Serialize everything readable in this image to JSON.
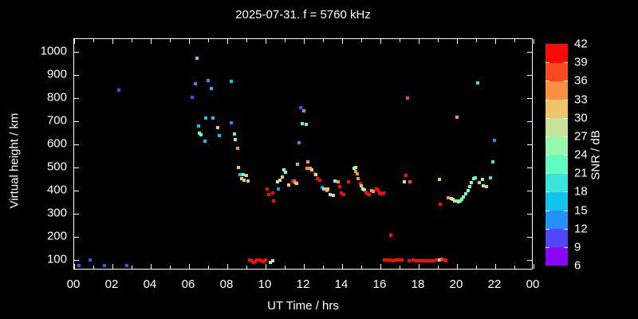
{
  "title": "2025-07-31. f = 5760 kHz",
  "axes": {
    "x": {
      "label": "UT Time / hrs",
      "tick_hours": [
        0,
        2,
        4,
        6,
        8,
        10,
        12,
        14,
        16,
        18,
        20,
        22,
        24
      ],
      "tick_labels": [
        "00",
        "02",
        "04",
        "06",
        "08",
        "10",
        "12",
        "14",
        "16",
        "18",
        "20",
        "22",
        "00"
      ],
      "minor_every_hours": 1,
      "range_hours": [
        0,
        24
      ]
    },
    "y": {
      "label": "Virtual height / km",
      "tick_values": [
        100,
        200,
        300,
        400,
        500,
        600,
        700,
        800,
        900,
        1000
      ],
      "tick_labels": [
        "100",
        "200",
        "300",
        "400",
        "500",
        "600",
        "700",
        "800",
        "900",
        "1000"
      ],
      "range_km": [
        55,
        1055
      ]
    }
  },
  "colorbar": {
    "label": "SNR / dB",
    "min": 6,
    "max": 42,
    "step": 3,
    "tick_labels": [
      "6",
      "9",
      "12",
      "15",
      "18",
      "21",
      "24",
      "27",
      "30",
      "33",
      "36",
      "39",
      "42"
    ],
    "colors": [
      "#8807fb",
      "#5345fb",
      "#2590f5",
      "#12c3ec",
      "#3ce3db",
      "#63fcc3",
      "#96f9ab",
      "#c5e39a",
      "#edc56d",
      "#fb9043",
      "#fb4a22",
      "#fb0a07"
    ]
  },
  "chart_data": {
    "type": "scatter",
    "xlabel": "UT Time / hrs",
    "ylabel": "Virtual height / km",
    "value_label": "SNR / dB",
    "series": [
      {
        "name": "ionospheric-echoes",
        "point_format": [
          "hour_ut",
          "virtual_height_km",
          "snr_db"
        ],
        "points": [
          [
            0.29,
            72,
            10
          ],
          [
            0.87,
            95,
            10
          ],
          [
            1.61,
            72,
            10
          ],
          [
            2.81,
            72,
            10
          ],
          [
            2.39,
            830,
            10
          ],
          [
            6.21,
            800,
            10
          ],
          [
            6.39,
            860,
            13
          ],
          [
            6.47,
            968,
            19
          ],
          [
            7.05,
            872,
            13
          ],
          [
            7.22,
            838,
            16
          ],
          [
            8.26,
            870,
            16
          ],
          [
            6.53,
            677,
            16
          ],
          [
            6.6,
            646,
            22
          ],
          [
            6.68,
            637,
            22
          ],
          [
            6.86,
            611,
            16
          ],
          [
            6.9,
            709,
            16
          ],
          [
            7.29,
            709,
            16
          ],
          [
            7.53,
            669,
            31
          ],
          [
            7.63,
            634,
            16
          ],
          [
            8.26,
            690,
            13
          ],
          [
            8.4,
            640,
            22
          ],
          [
            8.46,
            617,
            28
          ],
          [
            8.57,
            580,
            34
          ],
          [
            8.63,
            497,
            31
          ],
          [
            8.7,
            464,
            16
          ],
          [
            8.8,
            448,
            31
          ],
          [
            8.88,
            464,
            22
          ],
          [
            8.91,
            442,
            31
          ],
          [
            9.04,
            463,
            31
          ],
          [
            9.13,
            437,
            31
          ],
          [
            9.2,
            97,
            40
          ],
          [
            9.3,
            92,
            40
          ],
          [
            9.4,
            87,
            40
          ],
          [
            9.5,
            90,
            40
          ],
          [
            9.6,
            96,
            40
          ],
          [
            9.72,
            95,
            40
          ],
          [
            9.85,
            92,
            40
          ],
          [
            9.95,
            90,
            40
          ],
          [
            10.05,
            96,
            40
          ],
          [
            10.3,
            87,
            28
          ],
          [
            10.42,
            92,
            25
          ],
          [
            10.13,
            404,
            40
          ],
          [
            10.22,
            380,
            40
          ],
          [
            10.4,
            387,
            40
          ],
          [
            10.45,
            353,
            40
          ],
          [
            10.67,
            433,
            28
          ],
          [
            10.7,
            404,
            13
          ],
          [
            10.79,
            441,
            28
          ],
          [
            10.92,
            454,
            31
          ],
          [
            11.0,
            487,
            25
          ],
          [
            11.07,
            476,
            25
          ],
          [
            11.25,
            421,
            31
          ],
          [
            11.45,
            439,
            40
          ],
          [
            11.53,
            439,
            37
          ],
          [
            11.58,
            431,
            34
          ],
          [
            11.68,
            427,
            31
          ],
          [
            11.71,
            510,
            19
          ],
          [
            11.78,
            603,
            13
          ],
          [
            11.89,
            755,
            10
          ],
          [
            11.96,
            687,
            22
          ],
          [
            12.05,
            742,
            16
          ],
          [
            12.15,
            683,
            22
          ],
          [
            12.22,
            494,
            34
          ],
          [
            12.25,
            522,
            34
          ],
          [
            12.38,
            494,
            34
          ],
          [
            12.47,
            486,
            31
          ],
          [
            12.61,
            469,
            40
          ],
          [
            12.67,
            465,
            25
          ],
          [
            12.76,
            450,
            40
          ],
          [
            12.86,
            442,
            40
          ],
          [
            13.01,
            410,
            13
          ],
          [
            13.1,
            404,
            22
          ],
          [
            13.18,
            404,
            31
          ],
          [
            13.24,
            396,
            34
          ],
          [
            13.28,
            402,
            31
          ],
          [
            13.42,
            379,
            28
          ],
          [
            13.6,
            376,
            28
          ],
          [
            13.67,
            438,
            25
          ],
          [
            13.85,
            433,
            34
          ],
          [
            13.93,
            415,
            40
          ],
          [
            14.01,
            385,
            40
          ],
          [
            14.13,
            378,
            40
          ],
          [
            14.39,
            434,
            40
          ],
          [
            14.65,
            494,
            25
          ],
          [
            14.74,
            479,
            34
          ],
          [
            14.75,
            498,
            25
          ],
          [
            14.82,
            468,
            34
          ],
          [
            14.89,
            447,
            34
          ],
          [
            14.99,
            428,
            40
          ],
          [
            15.05,
            418,
            31
          ],
          [
            15.13,
            405,
            25
          ],
          [
            15.21,
            401,
            25
          ],
          [
            15.3,
            390,
            40
          ],
          [
            15.38,
            384,
            40
          ],
          [
            15.47,
            378,
            40
          ],
          [
            15.58,
            397,
            34
          ],
          [
            15.67,
            393,
            34
          ],
          [
            15.82,
            403,
            40
          ],
          [
            15.92,
            401,
            40
          ],
          [
            16.01,
            387,
            40
          ],
          [
            16.11,
            383,
            40
          ],
          [
            16.21,
            385,
            40
          ],
          [
            16.58,
            203,
            40
          ],
          [
            16.25,
            98,
            40
          ],
          [
            16.4,
            96,
            40
          ],
          [
            16.55,
            95,
            40
          ],
          [
            16.7,
            94,
            40
          ],
          [
            16.85,
            95,
            40
          ],
          [
            17.0,
            96,
            40
          ],
          [
            17.15,
            95,
            40
          ],
          [
            17.55,
            93,
            40
          ],
          [
            17.76,
            95,
            40
          ],
          [
            17.9,
            94,
            40
          ],
          [
            18.05,
            93,
            40
          ],
          [
            18.2,
            93,
            40
          ],
          [
            18.35,
            94,
            40
          ],
          [
            18.5,
            93,
            40
          ],
          [
            18.65,
            93,
            40
          ],
          [
            18.8,
            94,
            40
          ],
          [
            18.95,
            95,
            40
          ],
          [
            19.13,
            97,
            28
          ],
          [
            19.27,
            101,
            37
          ],
          [
            19.37,
            98,
            40
          ],
          [
            19.47,
            93,
            40
          ],
          [
            17.28,
            433,
            25
          ],
          [
            17.39,
            462,
            40
          ],
          [
            17.6,
            434,
            37
          ],
          [
            17.47,
            795,
            37
          ],
          [
            19.14,
            446,
            31
          ],
          [
            19.17,
            337,
            40
          ],
          [
            19.6,
            367,
            34
          ],
          [
            19.75,
            362,
            28
          ],
          [
            19.82,
            358,
            28
          ],
          [
            19.93,
            353,
            25
          ],
          [
            20.03,
            351,
            25
          ],
          [
            20.13,
            350,
            25
          ],
          [
            20.21,
            351,
            25
          ],
          [
            20.29,
            357,
            22
          ],
          [
            20.39,
            368,
            25
          ],
          [
            20.51,
            382,
            22
          ],
          [
            20.63,
            397,
            25
          ],
          [
            20.71,
            415,
            22
          ],
          [
            20.79,
            431,
            25
          ],
          [
            20.92,
            448,
            22
          ],
          [
            21.01,
            451,
            22
          ],
          [
            21.2,
            431,
            31
          ],
          [
            21.37,
            445,
            25
          ],
          [
            21.43,
            418,
            25
          ],
          [
            21.57,
            413,
            31
          ],
          [
            21.79,
            451,
            19
          ],
          [
            21.9,
            520,
            19
          ],
          [
            20.04,
            715,
            34
          ],
          [
            21.14,
            862,
            19
          ],
          [
            21.99,
            615,
            13
          ]
        ]
      }
    ]
  }
}
